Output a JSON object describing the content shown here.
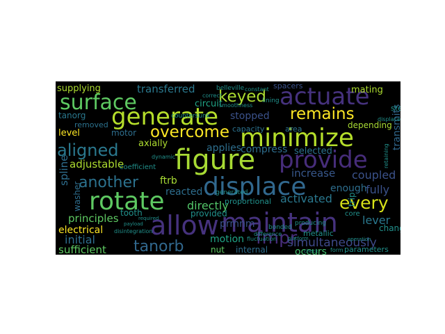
{
  "title": "",
  "words": [
    {
      "text": "surface",
      "color": "#5ec962"
    },
    {
      "text": "generate",
      "color": "#b5de2b"
    },
    {
      "text": "actuate",
      "color": "#46327e"
    },
    {
      "text": "keyed",
      "color": "#addc30"
    },
    {
      "text": "minimize",
      "color": "#b5de2b"
    },
    {
      "text": "figure",
      "color": "#a8db34"
    },
    {
      "text": "provide",
      "color": "#472d7b"
    },
    {
      "text": "remains",
      "color": "#fde725"
    },
    {
      "text": "overcome",
      "color": "#fde725"
    },
    {
      "text": "aligned",
      "color": "#2a788e"
    },
    {
      "text": "displace",
      "color": "#31688e"
    },
    {
      "text": "rotate",
      "color": "#5ec962"
    },
    {
      "text": "allow",
      "color": "#46327e"
    },
    {
      "text": "maintain",
      "color": "#46327e"
    },
    {
      "text": "every",
      "color": "#d8e219"
    },
    {
      "text": "another",
      "color": "#2c728e"
    },
    {
      "text": "tanorb",
      "color": "#31688e"
    },
    {
      "text": "fmpr",
      "color": "#472c7a"
    },
    {
      "text": "transferred",
      "color": "#2a788e"
    },
    {
      "text": "supplying",
      "color": "#addc30"
    },
    {
      "text": "circuit",
      "color": "#20a486"
    },
    {
      "text": "applies",
      "color": "#2e6f8e"
    },
    {
      "text": "axially",
      "color": "#addc30"
    },
    {
      "text": "stopped",
      "color": "#3b528b"
    },
    {
      "text": "compress",
      "color": "#2e6e8e"
    },
    {
      "text": "selected",
      "color": "#2c728e"
    },
    {
      "text": "transmits",
      "color": "#31688e"
    },
    {
      "text": "adjustable",
      "color": "#addc30"
    },
    {
      "text": "increase",
      "color": "#38588c"
    },
    {
      "text": "coupled",
      "color": "#3b528b"
    },
    {
      "text": "fully",
      "color": "#3b528b"
    },
    {
      "text": "activated",
      "color": "#2a788e"
    },
    {
      "text": "directly",
      "color": "#52c569"
    },
    {
      "text": "principles",
      "color": "#5ec962"
    },
    {
      "text": "electrical",
      "color": "#fde725"
    },
    {
      "text": "initial",
      "color": "#2e6e8e"
    },
    {
      "text": "sufficient",
      "color": "#5ec962"
    },
    {
      "text": "motion",
      "color": "#20a486"
    },
    {
      "text": "prmnm",
      "color": "#3b528b"
    },
    {
      "text": "simultaneously",
      "color": "#3e4989"
    },
    {
      "text": "lever",
      "color": "#2a788e"
    },
    {
      "text": "occurs",
      "color": "#44bf70"
    },
    {
      "text": "nut",
      "color": "#5ec962"
    },
    {
      "text": "internal",
      "color": "#2e6e8e"
    },
    {
      "text": "ftrb",
      "color": "#a8db34"
    },
    {
      "text": "reacted",
      "color": "#2e6e8e"
    },
    {
      "text": "enough",
      "color": "#2e6e8e"
    },
    {
      "text": "tanorg",
      "color": "#2a788e"
    },
    {
      "text": "removed",
      "color": "#2c728e"
    },
    {
      "text": "level",
      "color": "#fde725"
    },
    {
      "text": "motor",
      "color": "#2e6e8e"
    },
    {
      "text": "spline",
      "color": "#2e6e8e"
    },
    {
      "text": "washer",
      "color": "#2e6e8e"
    },
    {
      "text": "capacity",
      "color": "#2c728e"
    },
    {
      "text": "area",
      "color": "#2c728e"
    },
    {
      "text": "depending",
      "color": "#a8db34"
    },
    {
      "text": "steel",
      "color": "#21918c"
    },
    {
      "text": "mating",
      "color": "#addc30"
    },
    {
      "text": "belleville",
      "color": "#21918c"
    },
    {
      "text": "spacers",
      "color": "#3b528b"
    },
    {
      "text": "countersunk",
      "color": "#21918c"
    },
    {
      "text": "lining",
      "color": "#21918c"
    },
    {
      "text": "constant",
      "color": "#21918c"
    },
    {
      "text": "coefficient",
      "color": "#21918c"
    },
    {
      "text": "dynamic",
      "color": "#21918c"
    },
    {
      "text": "tooth",
      "color": "#21918c"
    },
    {
      "text": "generated",
      "color": "#21918c"
    },
    {
      "text": "provided",
      "color": "#21918c"
    },
    {
      "text": "trip",
      "color": "#21918c"
    },
    {
      "text": "change",
      "color": "#21918c"
    },
    {
      "text": "bonded",
      "color": "#21918c"
    },
    {
      "text": "producing",
      "color": "#21918c"
    },
    {
      "text": "metallic",
      "color": "#21918c"
    },
    {
      "text": "core",
      "color": "#21918c"
    },
    {
      "text": "retaining",
      "color": "#21918c"
    },
    {
      "text": "parameters",
      "color": "#21918c"
    },
    {
      "text": "form",
      "color": "#21918c"
    },
    {
      "text": "difference",
      "color": "#21918c"
    },
    {
      "text": "disintegration",
      "color": "#21918c"
    },
    {
      "text": "proportional",
      "color": "#21918c"
    },
    {
      "text": "fluctuation",
      "color": "#21918c"
    },
    {
      "text": "displaced",
      "color": "#21918c"
    },
    {
      "text": "platform",
      "color": "#21918c"
    },
    {
      "text": "operation",
      "color": "#21918c"
    },
    {
      "text": "required",
      "color": "#21918c"
    },
    {
      "text": "payload",
      "color": "#21918c"
    },
    {
      "text": "check",
      "color": "#21918c"
    },
    {
      "text": "correct",
      "color": "#21918c"
    },
    {
      "text": "smoothness",
      "color": "#21918c"
    }
  ]
}
